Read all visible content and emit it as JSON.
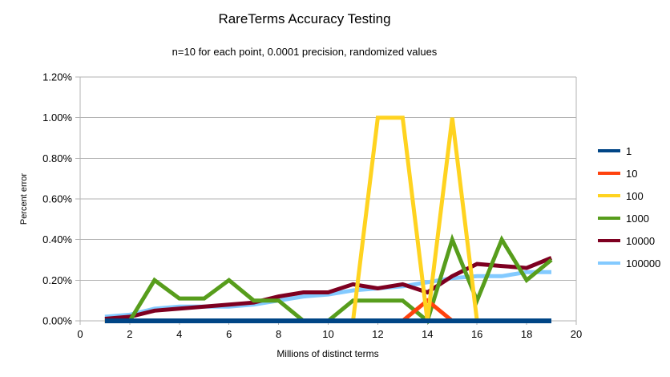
{
  "title": "RareTerms Accuracy Testing",
  "subtitle": "n=10 for each point, 0.0001 precision, randomized values",
  "chart_data": {
    "type": "line",
    "title": "RareTerms Accuracy Testing",
    "subtitle": "n=10 for each point, 0.0001 precision, randomized values",
    "xlabel": "Millions of distinct terms",
    "ylabel": "Percent error",
    "grid": true,
    "legend_position": "right",
    "xlim": [
      0,
      20
    ],
    "ylim": [
      0,
      1.2
    ],
    "x_ticks": [
      0,
      2,
      4,
      6,
      8,
      10,
      12,
      14,
      16,
      18,
      20
    ],
    "y_ticks": [
      0,
      0.2,
      0.4,
      0.6,
      0.8,
      1.0,
      1.2
    ],
    "y_tick_labels": [
      "0.00%",
      "0.20%",
      "0.40%",
      "0.60%",
      "0.80%",
      "1.00%",
      "1.20%"
    ],
    "grid_color": "#b3b3b3",
    "x": [
      1,
      2,
      3,
      4,
      5,
      6,
      7,
      8,
      9,
      10,
      11,
      12,
      13,
      14,
      15,
      16,
      17,
      18,
      19
    ],
    "series": [
      {
        "name": "1",
        "color": "#004586",
        "values": [
          0,
          0,
          0,
          0,
          0,
          0,
          0,
          0,
          0,
          0,
          0,
          0,
          0,
          0,
          0,
          0,
          0,
          0,
          0
        ]
      },
      {
        "name": "10",
        "color": "#ff420e",
        "values": [
          0,
          0,
          0,
          0,
          0,
          0,
          0,
          0,
          0,
          0,
          0,
          0,
          0,
          0.1,
          0,
          0,
          0,
          0,
          0
        ]
      },
      {
        "name": "100",
        "color": "#ffd320",
        "values": [
          0,
          0,
          0,
          0,
          0,
          0,
          0,
          0,
          0,
          0,
          0,
          1.0,
          1.0,
          0,
          1.0,
          0,
          0,
          0,
          0
        ]
      },
      {
        "name": "1000",
        "color": "#579d1c",
        "values": [
          0,
          0,
          0.2,
          0.11,
          0.11,
          0.2,
          0.1,
          0.1,
          0,
          0,
          0.1,
          0.1,
          0.1,
          0,
          0.4,
          0.1,
          0.4,
          0.2,
          0.3
        ]
      },
      {
        "name": "10000",
        "color": "#7e0021",
        "values": [
          0.01,
          0.02,
          0.05,
          0.06,
          0.07,
          0.08,
          0.09,
          0.12,
          0.14,
          0.14,
          0.18,
          0.16,
          0.18,
          0.14,
          0.22,
          0.28,
          0.27,
          0.26,
          0.31
        ]
      },
      {
        "name": "100000",
        "color": "#83caff",
        "values": [
          0.02,
          0.03,
          0.06,
          0.07,
          0.07,
          0.07,
          0.08,
          0.1,
          0.12,
          0.13,
          0.15,
          0.16,
          0.17,
          0.19,
          0.21,
          0.22,
          0.22,
          0.24,
          0.24
        ]
      }
    ],
    "draw_order": [
      "100000",
      "10000",
      "1000",
      "10",
      "100",
      "1"
    ]
  }
}
